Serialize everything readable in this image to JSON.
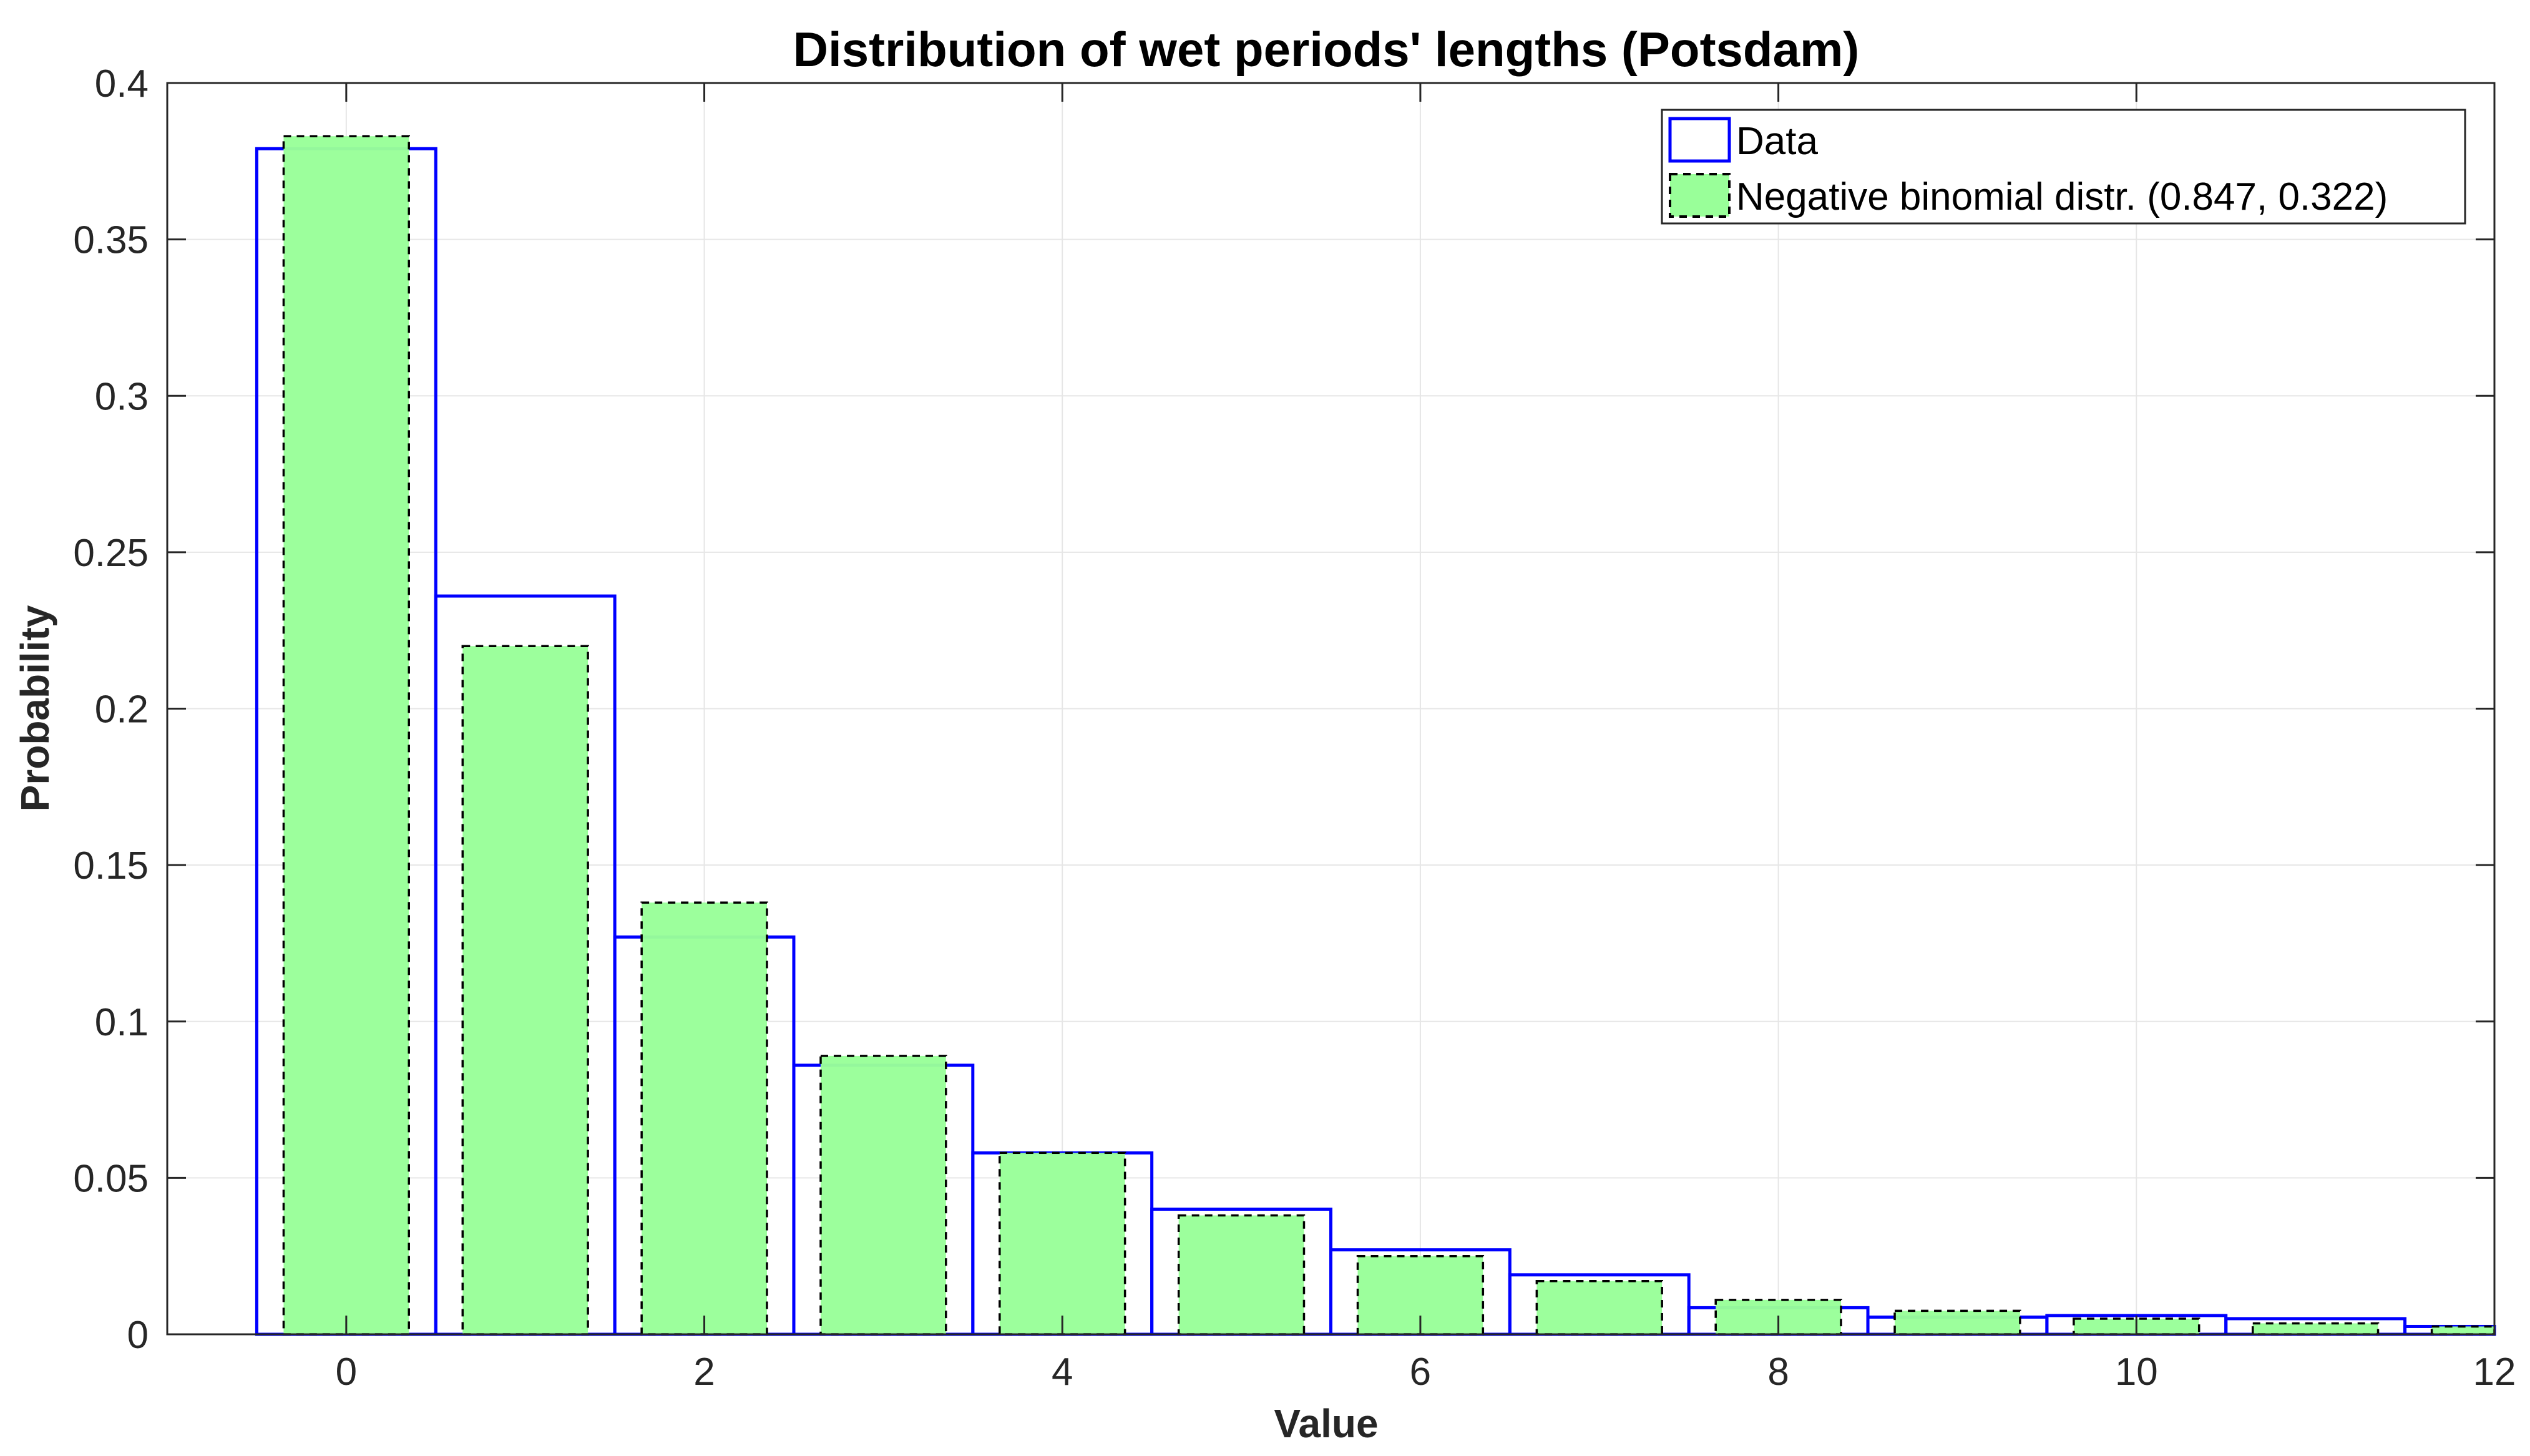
{
  "chart_data": {
    "type": "bar",
    "title": "Distribution of wet periods' lengths (Potsdam)",
    "xlabel": "Value",
    "ylabel": "Probability",
    "xlim": [
      -1,
      12
    ],
    "ylim": [
      0,
      0.4
    ],
    "xticks": [
      0,
      2,
      4,
      6,
      8,
      10,
      12
    ],
    "xtick_labels": [
      "0",
      "2",
      "4",
      "6",
      "8",
      "10",
      "12"
    ],
    "yticks": [
      0,
      0.05,
      0.1,
      0.15,
      0.2,
      0.25,
      0.3,
      0.35,
      0.4
    ],
    "ytick_labels": [
      "0",
      "0.05",
      "0.1",
      "0.15",
      "0.2",
      "0.25",
      "0.3",
      "0.35",
      "0.4"
    ],
    "grid": true,
    "legend_position": "top-right",
    "x": [
      0,
      1,
      2,
      3,
      4,
      5,
      6,
      7,
      8,
      9,
      10,
      11,
      12
    ],
    "series": [
      {
        "name": "Data",
        "style": "outline",
        "color": "#0000ff",
        "bar_width": 1.0,
        "values": [
          0.379,
          0.236,
          0.127,
          0.086,
          0.058,
          0.04,
          0.027,
          0.019,
          0.0085,
          0.0055,
          0.006,
          0.005,
          0.0025
        ]
      },
      {
        "name": "Negative binomial distr. (0.847, 0.322)",
        "style": "filled-dashed",
        "color": "#99ff99",
        "edge_color": "#000000",
        "bar_width": 0.7,
        "values": [
          0.383,
          0.22,
          0.138,
          0.089,
          0.058,
          0.038,
          0.025,
          0.017,
          0.011,
          0.0075,
          0.005,
          0.0035,
          0.0025
        ]
      }
    ]
  }
}
